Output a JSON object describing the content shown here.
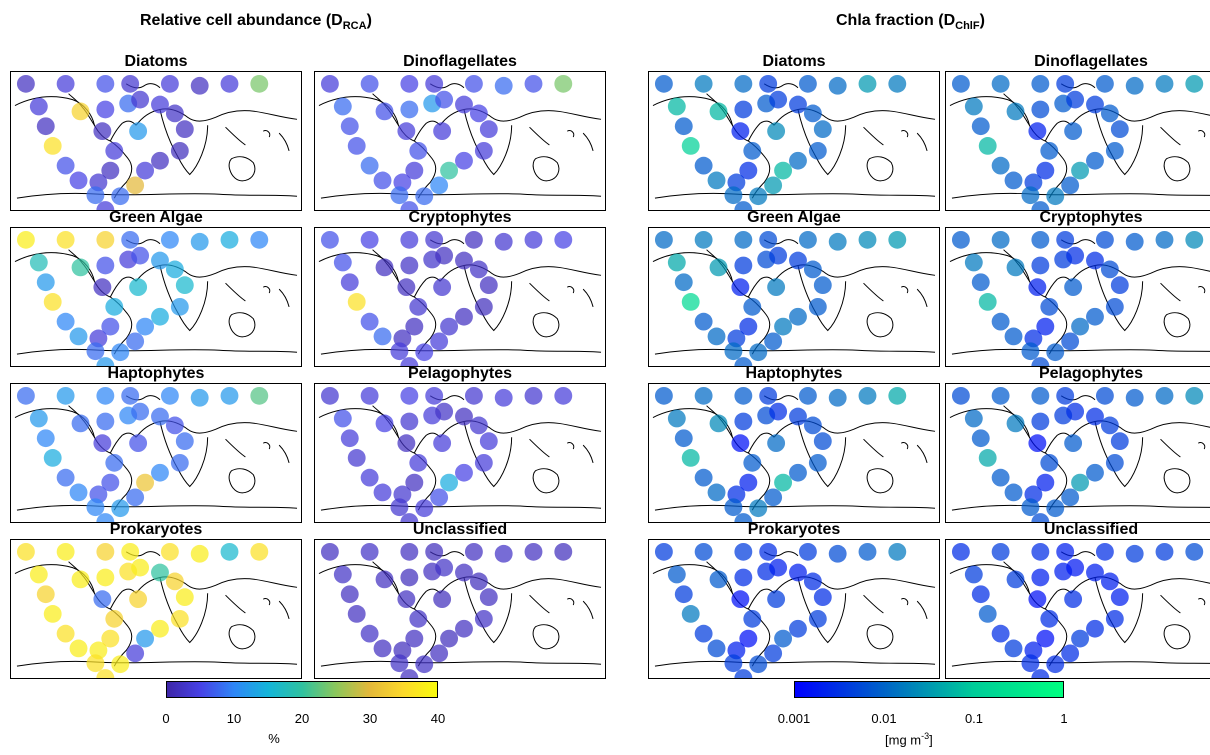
{
  "section_left": {
    "title_main": "Relative cell abundance (D",
    "title_sub": "RCA",
    "title_end": ")"
  },
  "section_right": {
    "title_main": "Chla fraction (D",
    "title_sub": "ChlF",
    "title_end": ")"
  },
  "panel_titles": [
    "Diatoms",
    "Dinoflagellates",
    "Green Algae",
    "Cryptophytes",
    "Haptophytes",
    "Pelagophytes",
    "Prokaryotes",
    "Unclassified"
  ],
  "colorbar_left": {
    "colormap": "parula",
    "colors": [
      "#3e26a8",
      "#4742e6",
      "#2e87f7",
      "#14b5d9",
      "#2fc2a0",
      "#8bc75c",
      "#e3b83a",
      "#fcd92b",
      "#f9fb0e"
    ],
    "ticks": [
      "0",
      "10",
      "20",
      "30",
      "40"
    ],
    "tick_values": [
      0,
      10,
      20,
      30,
      40
    ],
    "range": [
      0,
      40
    ],
    "unit_label": "%"
  },
  "colorbar_right": {
    "colormap": "winter",
    "colors": [
      "#0000ff",
      "#0064c8",
      "#00cc99",
      "#00ff80"
    ],
    "ticks": [
      "0.001",
      "0.01",
      "0.1",
      "1"
    ],
    "tick_values": [
      0.001,
      0.01,
      0.1,
      1
    ],
    "range": [
      0.001,
      1
    ],
    "scale": "log",
    "unit_main": "[mg m",
    "unit_sup": "-3",
    "unit_end": "]"
  },
  "panel_levels": {
    "left": [
      [
        0.05,
        0.1,
        0.15,
        0.08,
        0.1,
        0.05,
        0.1,
        0.6,
        0.1,
        0.05,
        0.9,
        0.15,
        0.12,
        0.08,
        0.05,
        0.1,
        0.05,
        0.12,
        0.2,
        0.08,
        0.1,
        0.06,
        0.05,
        0.04,
        0.05,
        0.1,
        0.75,
        0.2,
        0.1,
        0.3,
        0.85,
        0.2
      ],
      [
        0.1,
        0.15,
        0.12,
        0.1,
        0.15,
        0.2,
        0.15,
        0.6,
        0.2,
        0.15,
        0.15,
        0.2,
        0.15,
        0.12,
        0.1,
        0.15,
        0.1,
        0.2,
        0.3,
        0.15,
        0.1,
        0.12,
        0.1,
        0.1,
        0.12,
        0.5,
        0.25,
        0.2,
        0.15,
        0.1,
        0.15,
        0.2
      ],
      [
        0.95,
        0.9,
        0.85,
        0.2,
        0.25,
        0.3,
        0.35,
        0.25,
        0.45,
        0.3,
        0.9,
        0.25,
        0.3,
        0.1,
        0.15,
        0.35,
        0.05,
        0.15,
        0.1,
        0.15,
        0.3,
        0.35,
        0.4,
        0.3,
        0.35,
        0.25,
        0.2,
        0.25,
        0.3,
        0.4,
        0.5,
        0.2
      ],
      [
        0.15,
        0.12,
        0.1,
        0.08,
        0.05,
        0.08,
        0.1,
        0.12,
        0.15,
        0.1,
        0.9,
        0.15,
        0.2,
        0.05,
        0.05,
        0.08,
        0.05,
        0.06,
        0.07,
        0.05,
        0.05,
        0.06,
        0.05,
        0.04,
        0.05,
        0.08,
        0.1,
        0.12,
        0.1,
        0.08,
        0.05,
        0.1
      ],
      [
        0.2,
        0.3,
        0.25,
        0.2,
        0.25,
        0.3,
        0.3,
        0.55,
        0.3,
        0.25,
        0.35,
        0.2,
        0.25,
        0.15,
        0.15,
        0.2,
        0.1,
        0.2,
        0.25,
        0.2,
        0.2,
        0.15,
        0.2,
        0.2,
        0.25,
        0.8,
        0.2,
        0.3,
        0.25,
        0.15,
        0.2,
        0.25
      ],
      [
        0.08,
        0.1,
        0.12,
        0.1,
        0.08,
        0.1,
        0.08,
        0.1,
        0.15,
        0.1,
        0.08,
        0.1,
        0.1,
        0.08,
        0.05,
        0.1,
        0.05,
        0.08,
        0.1,
        0.06,
        0.05,
        0.08,
        0.1,
        0.1,
        0.12,
        0.35,
        0.15,
        0.1,
        0.08,
        0.1,
        0.12,
        0.08
      ],
      [
        0.9,
        0.95,
        0.85,
        0.95,
        0.9,
        0.95,
        0.4,
        0.9,
        0.95,
        0.85,
        0.95,
        0.9,
        0.95,
        0.95,
        0.9,
        0.85,
        0.2,
        0.95,
        0.9,
        0.95,
        0.5,
        0.85,
        0.95,
        0.9,
        0.95,
        0.3,
        0.1,
        0.95,
        0.9,
        0.85,
        0.95,
        0.9
      ],
      [
        0.05,
        0.06,
        0.05,
        0.04,
        0.05,
        0.06,
        0.05,
        0.04,
        0.06,
        0.05,
        0.05,
        0.06,
        0.05,
        0.04,
        0.05,
        0.06,
        0.05,
        0.04,
        0.05,
        0.06,
        0.05,
        0.04,
        0.05,
        0.06,
        0.05,
        0.04,
        0.05,
        0.06,
        0.05,
        0.04,
        0.05,
        0.06
      ]
    ],
    "right": [
      [
        0.3,
        0.4,
        0.35,
        0.2,
        0.3,
        0.35,
        0.5,
        0.4,
        0.6,
        0.3,
        0.7,
        0.3,
        0.4,
        0.2,
        0.15,
        0.3,
        0.1,
        0.2,
        0.3,
        0.2,
        0.2,
        0.3,
        0.35,
        0.3,
        0.35,
        0.6,
        0.5,
        0.4,
        0.3,
        0.45,
        0.6,
        0.35
      ],
      [
        0.3,
        0.35,
        0.3,
        0.2,
        0.3,
        0.35,
        0.4,
        0.5,
        0.4,
        0.3,
        0.6,
        0.35,
        0.3,
        0.2,
        0.15,
        0.3,
        0.1,
        0.25,
        0.3,
        0.2,
        0.2,
        0.3,
        0.25,
        0.3,
        0.3,
        0.5,
        0.3,
        0.4,
        0.3,
        0.3,
        0.4,
        0.35
      ],
      [
        0.35,
        0.4,
        0.35,
        0.25,
        0.35,
        0.4,
        0.45,
        0.5,
        0.55,
        0.35,
        0.75,
        0.3,
        0.35,
        0.2,
        0.15,
        0.3,
        0.1,
        0.2,
        0.25,
        0.2,
        0.2,
        0.3,
        0.3,
        0.3,
        0.35,
        0.4,
        0.3,
        0.35,
        0.3,
        0.4,
        0.5,
        0.35
      ],
      [
        0.3,
        0.35,
        0.3,
        0.2,
        0.25,
        0.3,
        0.35,
        0.45,
        0.4,
        0.3,
        0.6,
        0.3,
        0.3,
        0.15,
        0.1,
        0.25,
        0.1,
        0.2,
        0.2,
        0.15,
        0.15,
        0.25,
        0.2,
        0.25,
        0.3,
        0.35,
        0.25,
        0.3,
        0.25,
        0.3,
        0.4,
        0.3
      ],
      [
        0.3,
        0.35,
        0.3,
        0.2,
        0.3,
        0.35,
        0.4,
        0.55,
        0.4,
        0.3,
        0.6,
        0.3,
        0.35,
        0.15,
        0.1,
        0.3,
        0.05,
        0.2,
        0.25,
        0.15,
        0.2,
        0.25,
        0.25,
        0.3,
        0.3,
        0.6,
        0.3,
        0.4,
        0.3,
        0.35,
        0.45,
        0.3
      ],
      [
        0.25,
        0.3,
        0.3,
        0.2,
        0.25,
        0.3,
        0.35,
        0.45,
        0.35,
        0.3,
        0.55,
        0.3,
        0.3,
        0.15,
        0.1,
        0.25,
        0.05,
        0.2,
        0.2,
        0.15,
        0.15,
        0.2,
        0.2,
        0.25,
        0.3,
        0.5,
        0.3,
        0.3,
        0.25,
        0.3,
        0.4,
        0.3
      ],
      [
        0.2,
        0.25,
        0.2,
        0.15,
        0.2,
        0.25,
        0.3,
        0.4,
        0.3,
        0.2,
        0.4,
        0.2,
        0.25,
        0.1,
        0.05,
        0.2,
        0.05,
        0.15,
        0.15,
        0.1,
        0.1,
        0.15,
        0.15,
        0.2,
        0.2,
        0.3,
        0.2,
        0.25,
        0.2,
        0.2,
        0.3,
        0.2
      ],
      [
        0.15,
        0.2,
        0.15,
        0.1,
        0.15,
        0.2,
        0.2,
        0.25,
        0.2,
        0.15,
        0.3,
        0.15,
        0.2,
        0.1,
        0.05,
        0.15,
        0.05,
        0.1,
        0.1,
        0.08,
        0.1,
        0.1,
        0.1,
        0.15,
        0.15,
        0.2,
        0.15,
        0.15,
        0.15,
        0.15,
        0.2,
        0.15
      ]
    ]
  }
}
